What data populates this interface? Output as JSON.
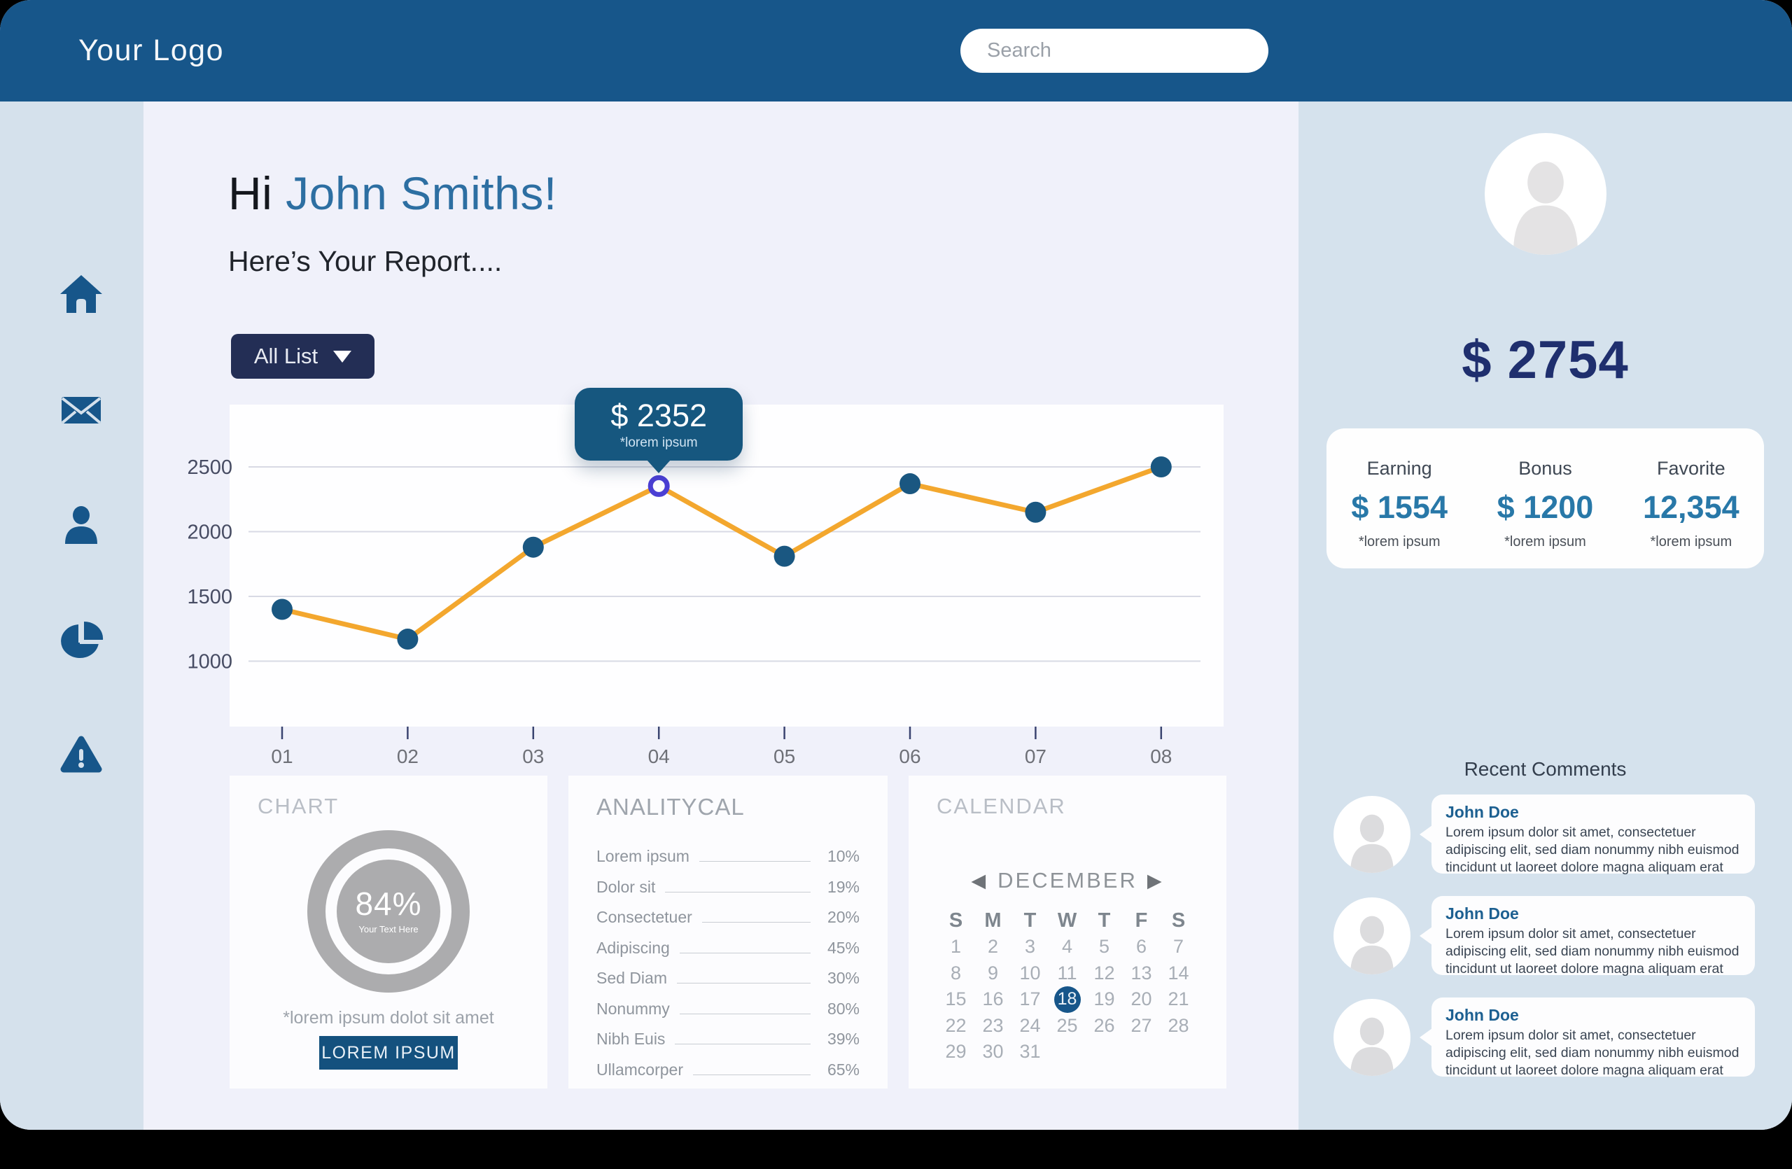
{
  "navbar": {
    "logo": "Your Logo",
    "search_placeholder": "Search"
  },
  "sidebar": {
    "icons": [
      "home",
      "mail",
      "user",
      "pie-chart",
      "alert"
    ]
  },
  "header": {
    "greeting_prefix": "Hi ",
    "greeting_name": "John Smiths!",
    "subtitle": "Here’s Your Report....",
    "filter_label": "All List"
  },
  "chart_data": {
    "type": "line",
    "x": [
      "01",
      "02",
      "03",
      "04",
      "05",
      "06",
      "07",
      "08"
    ],
    "values": [
      1400,
      1170,
      1880,
      2352,
      1810,
      2370,
      2150,
      2500
    ],
    "yticks": [
      2500,
      2000,
      1500,
      1000
    ],
    "ylim": [
      1000,
      2500
    ],
    "grid": true,
    "legend": false,
    "line_color": "#F3A72E",
    "point_color": "#1A5781",
    "highlight": {
      "index": 3,
      "ring_color": "#4B3FD4",
      "tooltip_value": "$ 2352",
      "tooltip_note": "*lorem ipsum"
    }
  },
  "cards": {
    "chart": {
      "title": "CHART",
      "percent": "84%",
      "inner_label": "Your Text Here",
      "caption": "*lorem ipsum dolot sit amet",
      "button_label": "LOREM IPSUM",
      "donut_color": "#ACACAE"
    },
    "analytical": {
      "title": "ANALITYCAL",
      "items": [
        {
          "label": "Lorem ipsum",
          "value": "10%"
        },
        {
          "label": "Dolor sit",
          "value": "19%"
        },
        {
          "label": "Consectetuer",
          "value": "20%"
        },
        {
          "label": "Adipiscing",
          "value": "45%"
        },
        {
          "label": "Sed Diam",
          "value": "30%"
        },
        {
          "label": "Nonummy",
          "value": "80%"
        },
        {
          "label": "Nibh Euis",
          "value": "39%"
        },
        {
          "label": "Ullamcorper",
          "value": "65%"
        }
      ]
    },
    "calendar": {
      "title": "CALENDAR",
      "month": "DECEMBER",
      "prev_arrow": "◀",
      "next_arrow": "▶",
      "weekdays": [
        "S",
        "M",
        "T",
        "W",
        "T",
        "F",
        "S"
      ],
      "weeks": [
        [
          "1",
          "2",
          "3",
          "4",
          "5",
          "6",
          "7"
        ],
        [
          "8",
          "9",
          "10",
          "11",
          "12",
          "13",
          "14"
        ],
        [
          "15",
          "16",
          "17",
          "18",
          "19",
          "20",
          "21"
        ],
        [
          "22",
          "23",
          "24",
          "25",
          "26",
          "27",
          "28"
        ],
        [
          "29",
          "30",
          "31",
          "",
          "",
          "",
          ""
        ]
      ],
      "selected_day": "18",
      "selected_color": "#17568A"
    }
  },
  "profile": {
    "balance": "$ 2754",
    "stats": [
      {
        "label": "Earning",
        "value": "$ 1554",
        "note": "*lorem ipsum"
      },
      {
        "label": "Bonus",
        "value": "$ 1200",
        "note": "*lorem ipsum"
      },
      {
        "label": "Favorite",
        "value": "12,354",
        "note": "*lorem ipsum"
      }
    ]
  },
  "comments": {
    "title": "Recent Comments",
    "items": [
      {
        "name": "John Doe",
        "text": "Lorem ipsum dolor sit amet, consectetuer adipiscing elit, sed diam nonummy nibh euismod tincidunt ut laoreet dolore magna aliquam erat"
      },
      {
        "name": "John Doe",
        "text": "Lorem ipsum dolor sit amet, consectetuer adipiscing elit, sed diam nonummy nibh euismod tincidunt ut laoreet dolore magna aliquam erat"
      },
      {
        "name": "John Doe",
        "text": "Lorem ipsum dolor sit amet, consectetuer adipiscing elit, sed diam nonummy nibh euismod tincidunt ut laoreet dolore magna aliquam erat"
      }
    ]
  },
  "colors": {
    "navbar": "#17568A",
    "side_bg": "#D5E1EC",
    "main_bg": "#F0F1FA",
    "accent_navy": "#232E55",
    "money_navy": "#1F2F6E",
    "stat_blue": "#2878A8"
  }
}
